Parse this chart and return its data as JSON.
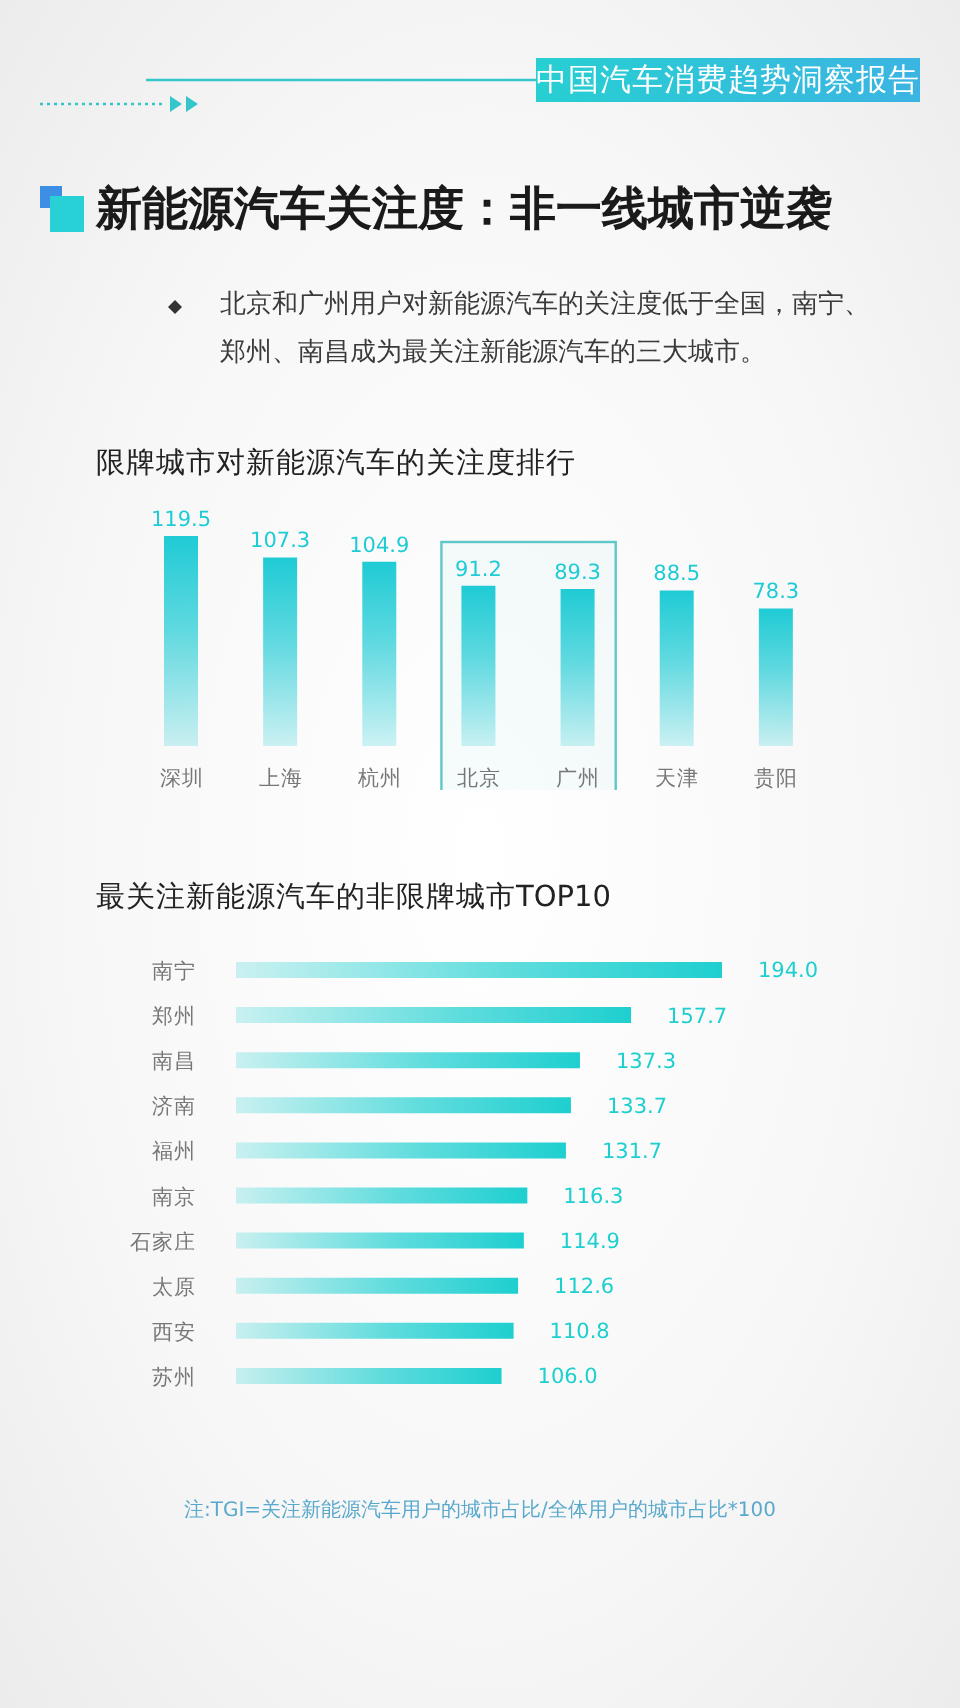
{
  "chart_data": [
    {
      "type": "other",
      "title": "新能源汽车关注度：非一线城市逆袭",
      "subtitle": "北京和广州用户对新能源汽车的关注度低于全国，南宁、郑州、南昌成为最关注新能源汽车的三大城市。",
      "annotations": [
        "中国汽车消费趋势洞察报告"
      ]
    },
    {
      "type": "bar",
      "title": "限牌城市对新能源汽车的关注度排行",
      "categories": [
        "深圳",
        "上海",
        "杭州",
        "北京",
        "广州",
        "天津",
        "贵阳"
      ],
      "values": [
        119.5,
        107.3,
        104.9,
        91.2,
        89.3,
        88.5,
        78.3
      ],
      "color": "#1fcbd5",
      "data_labels": true,
      "tick_labels": "x",
      "bands": [
        {
          "axis": "x",
          "from": "北京",
          "to": "广州",
          "color": "#5ec8c8"
        }
      ]
    },
    {
      "type": "bar",
      "orientation": "horizontal",
      "title": "最关注新能源汽车的非限牌城市TOP10",
      "categories": [
        "南宁",
        "郑州",
        "南昌",
        "济南",
        "福州",
        "南京",
        "石家庄",
        "太原",
        "西安",
        "苏州"
      ],
      "values": [
        194,
        157.7,
        137.3,
        133.7,
        131.7,
        116.3,
        114.9,
        112.6,
        110.8,
        106
      ],
      "value_labels": [
        "194.0",
        "157.7",
        "137.3",
        "133.7",
        "131.7",
        "116.3",
        "114.9",
        "112.6",
        "110.8",
        "106.0"
      ],
      "color": "#1ecfd0",
      "tick_labels": "y",
      "annotations": [
        "注:TGI=关注新能源汽车用户的城市占比/全体用户的城市占比*100"
      ]
    }
  ]
}
